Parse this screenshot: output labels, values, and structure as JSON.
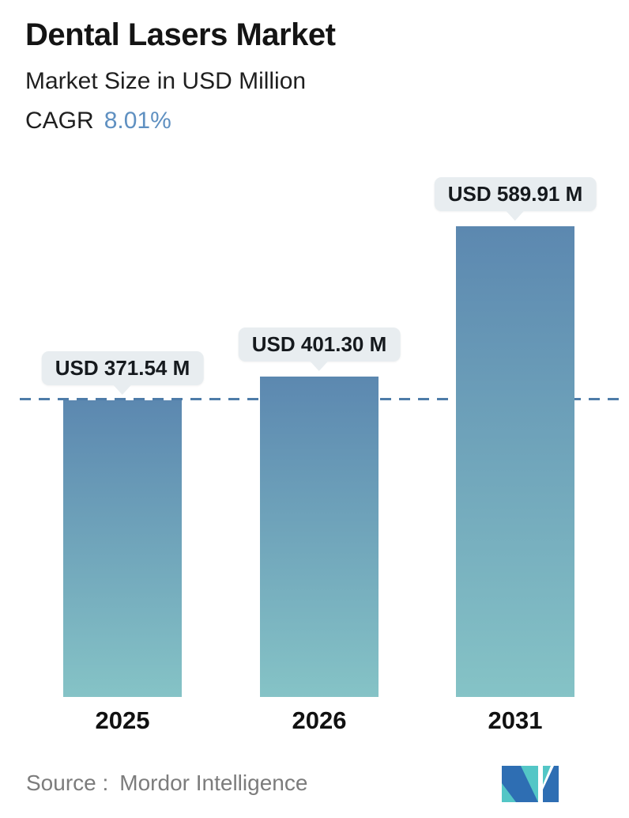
{
  "header": {
    "title": "Dental Lasers Market",
    "subtitle": "Market Size in USD Million",
    "cagr_label": "CAGR",
    "cagr_value": "8.01%"
  },
  "chart_data": {
    "type": "bar",
    "title": "Dental Lasers Market",
    "ylabel": "Market Size in USD Million",
    "cagr_percent": 8.01,
    "categories": [
      "2025",
      "2026",
      "2031"
    ],
    "values": [
      371.54,
      401.3,
      589.91
    ],
    "value_labels": [
      "USD 371.54 M",
      "USD 401.30 M",
      "USD 589.91 M"
    ],
    "unit": "USD Million",
    "ylim": [
      0,
      620
    ],
    "grid": false,
    "legend": false,
    "reference_line": {
      "value": 371.54,
      "style": "dashed",
      "color": "#4e7ca8"
    },
    "bar_gradient_top": "#5c88b0",
    "bar_gradient_bottom": "#85c3c6",
    "callout_bg": "#e8edf0"
  },
  "footer": {
    "source_label": "Source :",
    "source_name": "Mordor Intelligence",
    "logo_name": "mordor-intelligence-logo",
    "logo_teal": "#53c6c6",
    "logo_blue": "#2e6eb3"
  },
  "colors": {
    "accent_blue": "#5f90c1",
    "text_dark": "#141414",
    "source_gray": "#7c7c7c"
  }
}
